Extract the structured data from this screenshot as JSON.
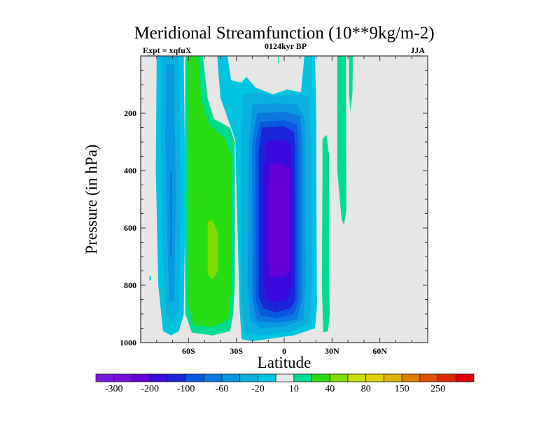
{
  "chart_data": {
    "type": "contour",
    "title": "Meridional Streamfunction (10**9kg/m-2)",
    "subtitle_left": "Expt = xqfuX",
    "subtitle_center": "0124kyr BP",
    "subtitle_right": "JJA",
    "xlabel": "Latitude",
    "ylabel": "Pressure (in hPa)",
    "xlim": [
      -90,
      90
    ],
    "ylim": [
      0,
      1000
    ],
    "y_inverted": true,
    "x_ticks": [
      {
        "value": -60,
        "label": "60S"
      },
      {
        "value": -30,
        "label": "30S"
      },
      {
        "value": 0,
        "label": "0"
      },
      {
        "value": 30,
        "label": "30N"
      },
      {
        "value": 60,
        "label": "60N"
      }
    ],
    "y_ticks": [
      {
        "value": 200,
        "label": "200"
      },
      {
        "value": 400,
        "label": "400"
      },
      {
        "value": 600,
        "label": "600"
      },
      {
        "value": 800,
        "label": "800"
      },
      {
        "value": 1000,
        "label": "1000"
      }
    ],
    "background_color": "#e6e6e6",
    "levels": [
      -300,
      -250,
      -200,
      -150,
      -100,
      -80,
      -60,
      -40,
      -20,
      -10,
      10,
      20,
      40,
      60,
      80,
      100,
      150,
      200,
      250,
      300
    ],
    "colorbar_labels": [
      {
        "level_index": 0,
        "label": "-300"
      },
      {
        "level_index": 2,
        "label": "-200"
      },
      {
        "level_index": 4,
        "label": "-100"
      },
      {
        "level_index": 6,
        "label": "-60"
      },
      {
        "level_index": 8,
        "label": "-20"
      },
      {
        "level_index": 10,
        "label": "10"
      },
      {
        "level_index": 12,
        "label": "40"
      },
      {
        "level_index": 14,
        "label": "80"
      },
      {
        "level_index": 16,
        "label": "150"
      },
      {
        "level_index": 18,
        "label": "250"
      }
    ],
    "colors": [
      "#7a14e0",
      "#7010d8",
      "#6400d8",
      "#3c08e0",
      "#1a24d8",
      "#0858e0",
      "#0a78e0",
      "#0a98e0",
      "#0ab0e0",
      "#00c4e0",
      "#e6e6e6",
      "#00dc90",
      "#28dc14",
      "#80dc00",
      "#c8e000",
      "#e0d000",
      "#e0b000",
      "#e07c00",
      "#e05000",
      "#e02800",
      "#e00000"
    ],
    "regions": [
      {
        "name": "sh-polar-cell",
        "color_index": 9,
        "points": [
          [
            -80,
            0
          ],
          [
            -63,
            0
          ],
          [
            -62,
            500
          ],
          [
            -63,
            900
          ],
          [
            -66,
            960
          ],
          [
            -71,
            975
          ],
          [
            -76,
            960
          ],
          [
            -79,
            800
          ],
          [
            -80.5,
            400
          ]
        ]
      },
      {
        "name": "sh-polar-cell",
        "color_index": 8,
        "points": [
          [
            -77,
            0
          ],
          [
            -66,
            0
          ],
          [
            -65,
            500
          ],
          [
            -66,
            880
          ],
          [
            -70,
            935
          ],
          [
            -74,
            900
          ],
          [
            -76,
            700
          ],
          [
            -77.5,
            300
          ]
        ]
      },
      {
        "name": "sh-polar-cell",
        "color_index": 7,
        "points": [
          [
            -74,
            30
          ],
          [
            -69,
            30
          ],
          [
            -68,
            500
          ],
          [
            -69,
            850
          ],
          [
            -72,
            860
          ],
          [
            -73,
            700
          ],
          [
            -74.5,
            300
          ]
        ]
      },
      {
        "name": "sh-polar-cell",
        "color_index": 6,
        "points": [
          [
            -71.5,
            400
          ],
          [
            -70.5,
            400
          ],
          [
            -70.5,
            700
          ],
          [
            -71.5,
            700
          ]
        ]
      },
      {
        "name": "sh-polar-dot",
        "color_index": 9,
        "points": [
          [
            -84.5,
            768
          ],
          [
            -83.5,
            768
          ],
          [
            -83.5,
            782
          ],
          [
            -84.5,
            782
          ]
        ]
      },
      {
        "name": "sh-ferrel-cell",
        "color_index": 11,
        "points": [
          [
            -62,
            0
          ],
          [
            -51,
            0
          ],
          [
            -48,
            150
          ],
          [
            -44,
            220
          ],
          [
            -34,
            250
          ],
          [
            -31,
            300
          ],
          [
            -31,
            800
          ],
          [
            -32,
            900
          ],
          [
            -34,
            960
          ],
          [
            -45,
            975
          ],
          [
            -58,
            965
          ],
          [
            -62,
            900
          ],
          [
            -62.5,
            500
          ]
        ]
      },
      {
        "name": "sh-ferrel-cell",
        "color_index": 12,
        "points": [
          [
            -61,
            0
          ],
          [
            -54,
            0
          ],
          [
            -52,
            150
          ],
          [
            -47,
            240
          ],
          [
            -37,
            290
          ],
          [
            -33,
            350
          ],
          [
            -33,
            800
          ],
          [
            -35,
            920
          ],
          [
            -45,
            945
          ],
          [
            -57,
            940
          ],
          [
            -61,
            850
          ]
        ]
      },
      {
        "name": "sh-ferrel-cell",
        "color_index": 13,
        "points": [
          [
            -48,
            580
          ],
          [
            -45,
            570
          ],
          [
            -41.5,
            620
          ],
          [
            -41.5,
            750
          ],
          [
            -45,
            780
          ],
          [
            -48,
            760
          ]
        ]
      },
      {
        "name": "hadley-cell",
        "color_index": 9,
        "points": [
          [
            -42,
            0
          ],
          [
            -35.5,
            0
          ],
          [
            -33.3,
            85
          ],
          [
            -26.7,
            93
          ],
          [
            -23.7,
            73
          ],
          [
            -18,
            110
          ],
          [
            -7,
            134
          ],
          [
            1.8,
            117
          ],
          [
            10.5,
            127
          ],
          [
            12.7,
            0
          ],
          [
            19.3,
            0
          ],
          [
            20,
            170
          ],
          [
            20.5,
            878
          ],
          [
            19.3,
            950
          ],
          [
            6,
            975
          ],
          [
            -20,
            995
          ],
          [
            -26.7,
            988
          ],
          [
            -28,
            878
          ],
          [
            -30.7,
            292
          ],
          [
            -40,
            146
          ]
        ]
      },
      {
        "name": "hadley-cell",
        "color_index": 8,
        "points": [
          [
            -26,
            135
          ],
          [
            -15,
            128
          ],
          [
            -5,
            140
          ],
          [
            5,
            135
          ],
          [
            15,
            140
          ],
          [
            17,
            300
          ],
          [
            17.5,
            800
          ],
          [
            16,
            930
          ],
          [
            5,
            960
          ],
          [
            -15,
            975
          ],
          [
            -25,
            965
          ],
          [
            -27,
            850
          ],
          [
            -27,
            300
          ]
        ]
      },
      {
        "name": "hadley-cell",
        "color_index": 7,
        "points": [
          [
            -20,
            170
          ],
          [
            -5,
            165
          ],
          [
            8,
            170
          ],
          [
            13,
            220
          ],
          [
            13.5,
            800
          ],
          [
            12,
            920
          ],
          [
            0,
            945
          ],
          [
            -15,
            950
          ],
          [
            -21,
            920
          ],
          [
            -23,
            800
          ],
          [
            -22,
            300
          ]
        ]
      },
      {
        "name": "hadley-cell",
        "color_index": 6,
        "points": [
          [
            -17,
            200
          ],
          [
            0,
            195
          ],
          [
            10,
            210
          ],
          [
            11,
            300
          ],
          [
            11,
            850
          ],
          [
            8,
            920
          ],
          [
            -5,
            930
          ],
          [
            -17,
            925
          ],
          [
            -20,
            850
          ],
          [
            -20,
            300
          ]
        ]
      },
      {
        "name": "hadley-cell",
        "color_index": 5,
        "points": [
          [
            -15,
            230
          ],
          [
            0,
            225
          ],
          [
            8,
            240
          ],
          [
            9,
            300
          ],
          [
            9,
            850
          ],
          [
            6,
            900
          ],
          [
            -5,
            915
          ],
          [
            -15,
            905
          ],
          [
            -18,
            850
          ],
          [
            -18,
            300
          ]
        ]
      },
      {
        "name": "hadley-cell",
        "color_index": 4,
        "points": [
          [
            -14,
            250
          ],
          [
            0,
            245
          ],
          [
            6,
            265
          ],
          [
            7,
            320
          ],
          [
            7,
            850
          ],
          [
            4,
            880
          ],
          [
            -5,
            895
          ],
          [
            -13,
            880
          ],
          [
            -16,
            840
          ],
          [
            -16,
            330
          ]
        ]
      },
      {
        "name": "hadley-cell",
        "color_index": 3,
        "points": [
          [
            -11,
            300
          ],
          [
            0,
            290
          ],
          [
            4,
            310
          ],
          [
            5,
            400
          ],
          [
            5,
            800
          ],
          [
            2,
            850
          ],
          [
            -5,
            860
          ],
          [
            -11,
            850
          ],
          [
            -13,
            780
          ],
          [
            -13,
            400
          ]
        ]
      },
      {
        "name": "hadley-cell",
        "color_index": 2,
        "points": [
          [
            -9,
            380
          ],
          [
            -2,
            375
          ],
          [
            3,
            390
          ],
          [
            3.5,
            500
          ],
          [
            3.5,
            750
          ],
          [
            0,
            770
          ],
          [
            -9,
            770
          ],
          [
            -10.5,
            700
          ],
          [
            -10,
            450
          ]
        ]
      },
      {
        "name": "nh-strip",
        "color_index": 11,
        "points": [
          [
            24,
            290
          ],
          [
            26.5,
            275
          ],
          [
            28.2,
            350
          ],
          [
            28,
            700
          ],
          [
            28.6,
            900
          ],
          [
            27.5,
            960
          ],
          [
            24.5,
            965
          ],
          [
            23.6,
            800
          ],
          [
            24,
            400
          ]
        ]
      },
      {
        "name": "nh-strip",
        "color_index": 11,
        "points": [
          [
            33.3,
            0
          ],
          [
            38.8,
            0
          ],
          [
            38.8,
            300
          ],
          [
            39,
            540
          ],
          [
            37.5,
            590
          ],
          [
            36,
            570
          ],
          [
            33.3,
            400
          ]
        ]
      },
      {
        "name": "nh-strip",
        "color_index": 11,
        "points": [
          [
            40.7,
            0
          ],
          [
            43,
            0
          ],
          [
            42.8,
            130
          ],
          [
            41.5,
            195
          ],
          [
            40.7,
            130
          ]
        ]
      },
      {
        "name": "equator-sliver",
        "color_index": 11,
        "points": [
          [
            -3.8,
            0
          ],
          [
            -3.2,
            0
          ],
          [
            -3.2,
            25
          ],
          [
            -3.8,
            25
          ]
        ]
      }
    ]
  }
}
